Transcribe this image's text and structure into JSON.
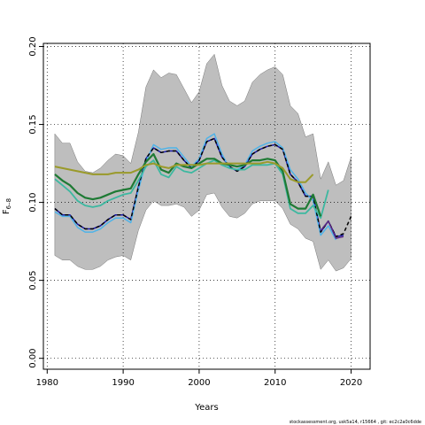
{
  "chart_data": {
    "type": "line",
    "title": "",
    "xlabel": "Years",
    "ylabel": "F",
    "ylabel_subscript": "6–8",
    "xlim": [
      1979.5,
      2022.5
    ],
    "ylim": [
      -0.007,
      0.202
    ],
    "x_ticks": [
      1980,
      1990,
      2000,
      2010,
      2020
    ],
    "y_ticks": [
      0.0,
      0.05,
      0.1,
      0.15,
      0.2
    ],
    "y_tick_labels": [
      "0.00",
      "0.05",
      "0.10",
      "0.15",
      "0.20"
    ],
    "grid": true,
    "band": {
      "color": "#bebebe",
      "x": [
        1981,
        1982,
        1983,
        1984,
        1985,
        1986,
        1987,
        1988,
        1989,
        1990,
        1991,
        1992,
        1993,
        1994,
        1995,
        1996,
        1997,
        1998,
        1999,
        2000,
        2001,
        2002,
        2003,
        2004,
        2005,
        2006,
        2007,
        2008,
        2009,
        2010,
        2011,
        2012,
        2013,
        2014,
        2015,
        2016,
        2017,
        2018,
        2019,
        2020
      ],
      "upper": [
        0.144,
        0.138,
        0.138,
        0.126,
        0.12,
        0.119,
        0.122,
        0.127,
        0.131,
        0.13,
        0.125,
        0.145,
        0.174,
        0.185,
        0.18,
        0.183,
        0.182,
        0.173,
        0.164,
        0.171,
        0.189,
        0.195,
        0.175,
        0.165,
        0.162,
        0.165,
        0.177,
        0.182,
        0.185,
        0.187,
        0.182,
        0.162,
        0.157,
        0.142,
        0.144,
        0.115,
        0.126,
        0.111,
        0.114,
        0.129
      ],
      "lower": [
        0.066,
        0.063,
        0.063,
        0.059,
        0.057,
        0.057,
        0.059,
        0.063,
        0.065,
        0.066,
        0.063,
        0.082,
        0.095,
        0.101,
        0.098,
        0.098,
        0.099,
        0.097,
        0.091,
        0.095,
        0.105,
        0.106,
        0.097,
        0.091,
        0.09,
        0.093,
        0.099,
        0.101,
        0.101,
        0.101,
        0.096,
        0.086,
        0.083,
        0.077,
        0.075,
        0.057,
        0.063,
        0.056,
        0.058,
        0.064
      ]
    },
    "series": [
      {
        "color": "#1a1aa8",
        "width": 1.5,
        "x": [
          1981,
          1982,
          1983,
          1984,
          1985,
          1986,
          1987,
          1988,
          1989,
          1990,
          1991,
          1992,
          1993,
          1994,
          1995,
          1996,
          1997,
          1998,
          1999,
          2000,
          2001,
          2002,
          2003,
          2004,
          2005,
          2006,
          2007,
          2008,
          2009,
          2010,
          2011,
          2012,
          2013,
          2014,
          2015,
          2016,
          2017,
          2018,
          2019
        ],
        "y": [
          0.096,
          0.092,
          0.092,
          0.086,
          0.083,
          0.083,
          0.085,
          0.089,
          0.092,
          0.092,
          0.089,
          0.11,
          0.128,
          0.135,
          0.132,
          0.133,
          0.133,
          0.127,
          0.122,
          0.127,
          0.139,
          0.141,
          0.129,
          0.123,
          0.12,
          0.123,
          0.131,
          0.134,
          0.136,
          0.137,
          0.134,
          0.118,
          0.113,
          0.104,
          0.104,
          0.081,
          0.088,
          0.078,
          0.079
        ]
      },
      {
        "color": "#4fb3e8",
        "width": 1.5,
        "x": [
          1981,
          1982,
          1983,
          1984,
          1985,
          1986,
          1987,
          1988,
          1989,
          1990,
          1991,
          1992,
          1993,
          1994,
          1995,
          1996,
          1997,
          1998,
          1999,
          2000,
          2001,
          2002,
          2003,
          2004,
          2005,
          2006,
          2007,
          2008,
          2009,
          2010,
          2011,
          2012,
          2013,
          2014,
          2015,
          2016,
          2017,
          2018
        ],
        "y": [
          0.094,
          0.091,
          0.091,
          0.084,
          0.081,
          0.081,
          0.083,
          0.087,
          0.09,
          0.09,
          0.087,
          0.108,
          0.126,
          0.137,
          0.134,
          0.135,
          0.135,
          0.129,
          0.123,
          0.128,
          0.141,
          0.144,
          0.131,
          0.122,
          0.121,
          0.124,
          0.133,
          0.136,
          0.138,
          0.139,
          0.135,
          0.121,
          0.115,
          0.106,
          0.101,
          0.079,
          0.085,
          0.076
        ]
      },
      {
        "color": "#000000",
        "width": 1.5,
        "dash": "4,3",
        "x": [
          1981,
          1982,
          1983,
          1984,
          1985,
          1986,
          1987,
          1988,
          1989,
          1990,
          1991,
          1992,
          1993,
          1994,
          1995,
          1996,
          1997,
          1998,
          1999,
          2000,
          2001,
          2002,
          2003,
          2004,
          2005,
          2006,
          2007,
          2008,
          2009,
          2010,
          2011,
          2012,
          2013,
          2014,
          2015,
          2016,
          2017,
          2018,
          2019,
          2020
        ],
        "y": [
          0.096,
          0.092,
          0.092,
          0.086,
          0.083,
          0.083,
          0.085,
          0.089,
          0.092,
          0.092,
          0.089,
          0.11,
          0.128,
          0.135,
          0.132,
          0.133,
          0.133,
          0.127,
          0.122,
          0.127,
          0.139,
          0.141,
          0.129,
          0.123,
          0.12,
          0.123,
          0.131,
          0.134,
          0.136,
          0.137,
          0.134,
          0.118,
          0.113,
          0.104,
          0.104,
          0.081,
          0.088,
          0.078,
          0.08,
          0.091
        ]
      },
      {
        "color": "#5b2a86",
        "width": 1.5,
        "x": [
          2016,
          2017,
          2018,
          2019
        ],
        "y": [
          0.082,
          0.088,
          0.077,
          0.078
        ]
      },
      {
        "color": "#3cb8a0",
        "width": 1.8,
        "x": [
          1981,
          1982,
          1983,
          1984,
          1985,
          1986,
          1987,
          1988,
          1989,
          1990,
          1991,
          1992,
          1993,
          1994,
          1995,
          1996,
          1997,
          1998,
          1999,
          2000,
          2001,
          2002,
          2003,
          2004,
          2005,
          2006,
          2007,
          2008,
          2009,
          2010,
          2011,
          2012,
          2013,
          2014,
          2015,
          2016,
          2017
        ],
        "y": [
          0.115,
          0.111,
          0.107,
          0.101,
          0.098,
          0.097,
          0.098,
          0.101,
          0.103,
          0.105,
          0.106,
          0.114,
          0.123,
          0.127,
          0.118,
          0.116,
          0.123,
          0.12,
          0.119,
          0.122,
          0.125,
          0.127,
          0.124,
          0.122,
          0.121,
          0.121,
          0.124,
          0.124,
          0.124,
          0.125,
          0.118,
          0.096,
          0.093,
          0.093,
          0.098,
          0.09,
          0.108
        ]
      },
      {
        "color": "#1e7a34",
        "width": 2.2,
        "x": [
          1981,
          1982,
          1983,
          1984,
          1985,
          1986,
          1987,
          1988,
          1989,
          1990,
          1991,
          1992,
          1993,
          1994,
          1995,
          1996,
          1997,
          1998,
          1999,
          2000,
          2001,
          2002,
          2003,
          2004,
          2005,
          2006,
          2007,
          2008,
          2009,
          2010,
          2011,
          2012,
          2013,
          2014,
          2015,
          2016
        ],
        "y": [
          0.118,
          0.114,
          0.111,
          0.106,
          0.103,
          0.102,
          0.103,
          0.105,
          0.107,
          0.108,
          0.109,
          0.118,
          0.126,
          0.131,
          0.121,
          0.119,
          0.125,
          0.123,
          0.122,
          0.125,
          0.128,
          0.128,
          0.125,
          0.124,
          0.123,
          0.124,
          0.127,
          0.127,
          0.128,
          0.127,
          0.12,
          0.099,
          0.096,
          0.096,
          0.105,
          0.091
        ]
      },
      {
        "color": "#9a9a2a",
        "width": 2.0,
        "x": [
          1981,
          1982,
          1983,
          1984,
          1985,
          1986,
          1987,
          1988,
          1989,
          1990,
          1991,
          1992,
          1993,
          1994,
          1995,
          1996,
          1997,
          1998,
          1999,
          2000,
          2001,
          2002,
          2003,
          2004,
          2005,
          2006,
          2007,
          2008,
          2009,
          2010,
          2011,
          2012,
          2013,
          2014,
          2015
        ],
        "y": [
          0.123,
          0.122,
          0.121,
          0.12,
          0.119,
          0.118,
          0.118,
          0.118,
          0.119,
          0.119,
          0.119,
          0.121,
          0.124,
          0.125,
          0.123,
          0.122,
          0.124,
          0.124,
          0.124,
          0.124,
          0.125,
          0.125,
          0.125,
          0.125,
          0.125,
          0.125,
          0.125,
          0.125,
          0.126,
          0.125,
          0.122,
          0.115,
          0.113,
          0.113,
          0.118
        ]
      }
    ],
    "footer_text": "stockassessment.org, usk5a14, r15664 , git: ec2c2a0c6dde"
  }
}
